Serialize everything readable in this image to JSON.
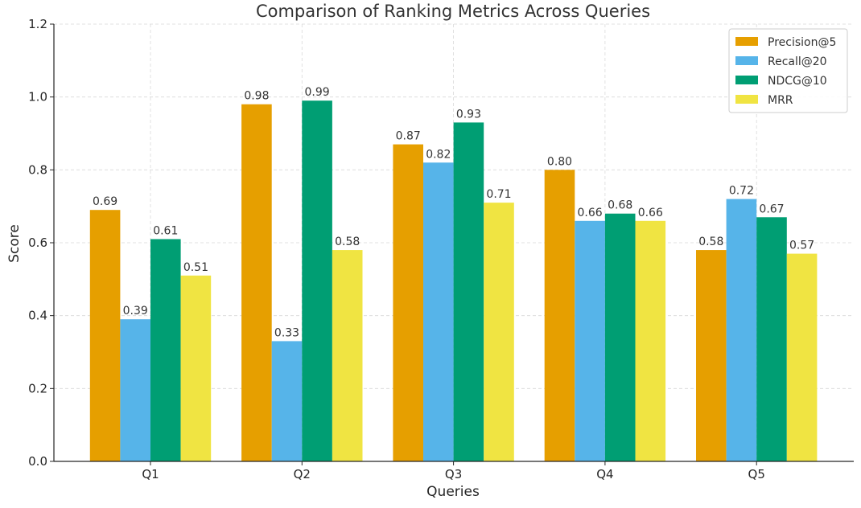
{
  "chart_data": {
    "type": "bar",
    "title": "Comparison of Ranking Metrics Across Queries",
    "xlabel": "Queries",
    "ylabel": "Score",
    "categories": [
      "Q1",
      "Q2",
      "Q3",
      "Q4",
      "Q5"
    ],
    "ylim": [
      0,
      1.2
    ],
    "yticks": [
      "0.0",
      "0.2",
      "0.4",
      "0.6",
      "0.8",
      "1.0",
      "1.2"
    ],
    "grid": true,
    "legend_position": "top-right",
    "series": [
      {
        "name": "Precision@5",
        "color": "#E69F00",
        "values": [
          0.69,
          0.98,
          0.87,
          0.8,
          0.58
        ],
        "labels": [
          "0.69",
          "0.98",
          "0.87",
          "0.80",
          "0.58"
        ]
      },
      {
        "name": "Recall@20",
        "color": "#56B4E9",
        "values": [
          0.39,
          0.33,
          0.82,
          0.66,
          0.72
        ],
        "labels": [
          "0.39",
          "0.33",
          "0.82",
          "0.66",
          "0.72"
        ]
      },
      {
        "name": "NDCG@10",
        "color": "#009E73",
        "values": [
          0.61,
          0.99,
          0.93,
          0.68,
          0.67
        ],
        "labels": [
          "0.61",
          "0.99",
          "0.93",
          "0.68",
          "0.67"
        ]
      },
      {
        "name": "MRR",
        "color": "#F0E442",
        "values": [
          0.51,
          0.58,
          0.71,
          0.66,
          0.57
        ],
        "labels": [
          "0.51",
          "0.58",
          "0.71",
          "0.66",
          "0.57"
        ]
      }
    ]
  }
}
